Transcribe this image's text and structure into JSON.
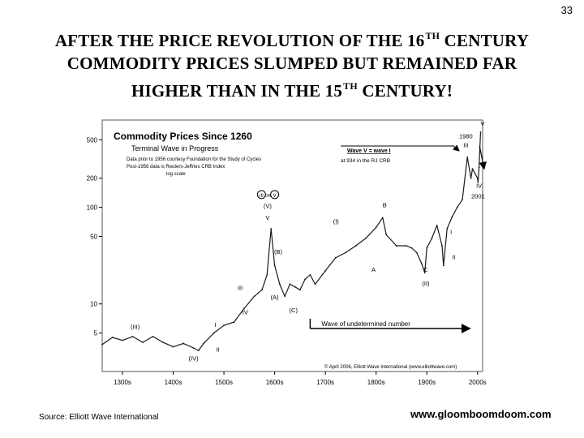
{
  "page": {
    "number": "33",
    "title": {
      "line1_pre": "AFTER THE PRICE REVOLUTION OF THE 16",
      "line1_sup": "TH",
      "line1_post": "CENTURY",
      "line2": "COMMODITY PRICES SLUMPED BUT REMAINED FAR",
      "line3_pre": "HIGHER THAN IN THE 15",
      "line3_sup": "TH",
      "line3_post": "CENTURY!"
    },
    "source": "Source: Elliott Wave International",
    "website": "www.gloomboomdoom.com"
  },
  "chart_data": {
    "type": "line",
    "title": "Commodity Prices Since 1260",
    "subtitle": "Terminal Wave in Progress",
    "notes": [
      "Data prior to 1956 courtesy Foundation for the Study of Cycles",
      "Post-1956 data is Reuters-Jeffries CRB Index",
      "log scale"
    ],
    "y_scale": "log",
    "ylim": [
      2,
      800
    ],
    "xlim": [
      1260,
      2010
    ],
    "y_ticks": [
      {
        "value": 5,
        "label": "5"
      },
      {
        "value": 10,
        "label": "10"
      },
      {
        "value": 50,
        "label": "50"
      },
      {
        "value": 100,
        "label": "100"
      },
      {
        "value": 200,
        "label": "200"
      },
      {
        "value": 500,
        "label": "500"
      }
    ],
    "x_ticks": [
      {
        "value": 1300,
        "label": "1300s"
      },
      {
        "value": 1400,
        "label": "1400s"
      },
      {
        "value": 1500,
        "label": "1500s"
      },
      {
        "value": 1600,
        "label": "1600s"
      },
      {
        "value": 1700,
        "label": "1700s"
      },
      {
        "value": 1800,
        "label": "1800s"
      },
      {
        "value": 1900,
        "label": "1900s"
      },
      {
        "value": 2000,
        "label": "2000s"
      }
    ],
    "series": [
      {
        "x": [
          1260,
          1280,
          1300,
          1320,
          1340,
          1360,
          1380,
          1400,
          1420,
          1440,
          1450,
          1460,
          1480,
          1500,
          1520,
          1540,
          1560,
          1575,
          1585,
          1593,
          1600,
          1610,
          1620,
          1630,
          1640,
          1650,
          1660,
          1670,
          1680,
          1700,
          1720,
          1740,
          1760,
          1780,
          1800,
          1813,
          1820,
          1840,
          1860,
          1870,
          1880,
          1890,
          1896,
          1900,
          1910,
          1920,
          1930,
          1933,
          1940,
          1950,
          1960,
          1970,
          1980,
          1987,
          1990,
          2000,
          2001,
          2003,
          2006
        ],
        "values": [
          3.8,
          4.5,
          4.2,
          4.6,
          4.0,
          4.6,
          4.0,
          3.6,
          3.9,
          3.5,
          3.3,
          3.9,
          5.0,
          6.0,
          6.5,
          9.0,
          12.0,
          14.0,
          20.0,
          60.0,
          25.0,
          16.0,
          12.0,
          16.0,
          15.0,
          14.0,
          18.0,
          20.0,
          16.0,
          22.0,
          30.0,
          34.0,
          40.0,
          48.0,
          62.0,
          78.0,
          52.0,
          40.0,
          40.0,
          38.0,
          34.0,
          26.0,
          21.0,
          38.0,
          48.0,
          65.0,
          40.0,
          25.0,
          60.0,
          80.0,
          100.0,
          120.0,
          330.0,
          200.0,
          250.0,
          200.0,
          182.0,
          260.0,
          600.0
        ]
      }
    ],
    "wave_labels": [
      {
        "x": 1325,
        "y": 5.5,
        "text": "(III)"
      },
      {
        "x": 1440,
        "y": 2.6,
        "text": "(IV)"
      },
      {
        "x": 1483,
        "y": 5.8,
        "text": "I"
      },
      {
        "x": 1488,
        "y": 3.2,
        "text": "II"
      },
      {
        "x": 1532,
        "y": 14.0,
        "text": "III"
      },
      {
        "x": 1542,
        "y": 7.8,
        "text": "IV"
      },
      {
        "x": 1586,
        "y": 98,
        "text": "(V)"
      },
      {
        "x": 1586,
        "y": 74,
        "text": "V"
      },
      {
        "x": 1607,
        "y": 33,
        "text": "(B)"
      },
      {
        "x": 1600,
        "y": 11.2,
        "text": "(A)"
      },
      {
        "x": 1637,
        "y": 8.2,
        "text": "(C)"
      },
      {
        "x": 1721,
        "y": 68,
        "text": "(I)"
      },
      {
        "x": 1795,
        "y": 21.5,
        "text": "A"
      },
      {
        "x": 1817,
        "y": 100,
        "text": "B"
      },
      {
        "x": 1898,
        "y": 21.5,
        "text": "C"
      },
      {
        "x": 1898,
        "y": 15.5,
        "text": "(II)"
      },
      {
        "x": 1948,
        "y": 53,
        "text": "I"
      },
      {
        "x": 1953,
        "y": 29,
        "text": "II"
      },
      {
        "x": 1977,
        "y": 520,
        "text": "1980"
      },
      {
        "x": 1977,
        "y": 420,
        "text": "III"
      },
      {
        "x": 2003,
        "y": 160,
        "text": "IV"
      },
      {
        "x": 2001,
        "y": 124,
        "text": "2001"
      },
      {
        "x": 2010,
        "y": 960,
        "text": "(III)"
      },
      {
        "x": 2010,
        "y": 700,
        "text": "V"
      }
    ],
    "circled_label": {
      "text": "OR"
    },
    "wave_box": {
      "line1": "Wave V = wave I",
      "line2": "at 934 in the RJ CRB"
    },
    "undetermined_label": "Wave of undetermined number",
    "copyright": "© April 2006, Elliott Wave International (www.elliottwave.com)",
    "colors": {
      "line": "#1a1a1a",
      "background": "#ffffff",
      "frame": "#555555"
    }
  }
}
